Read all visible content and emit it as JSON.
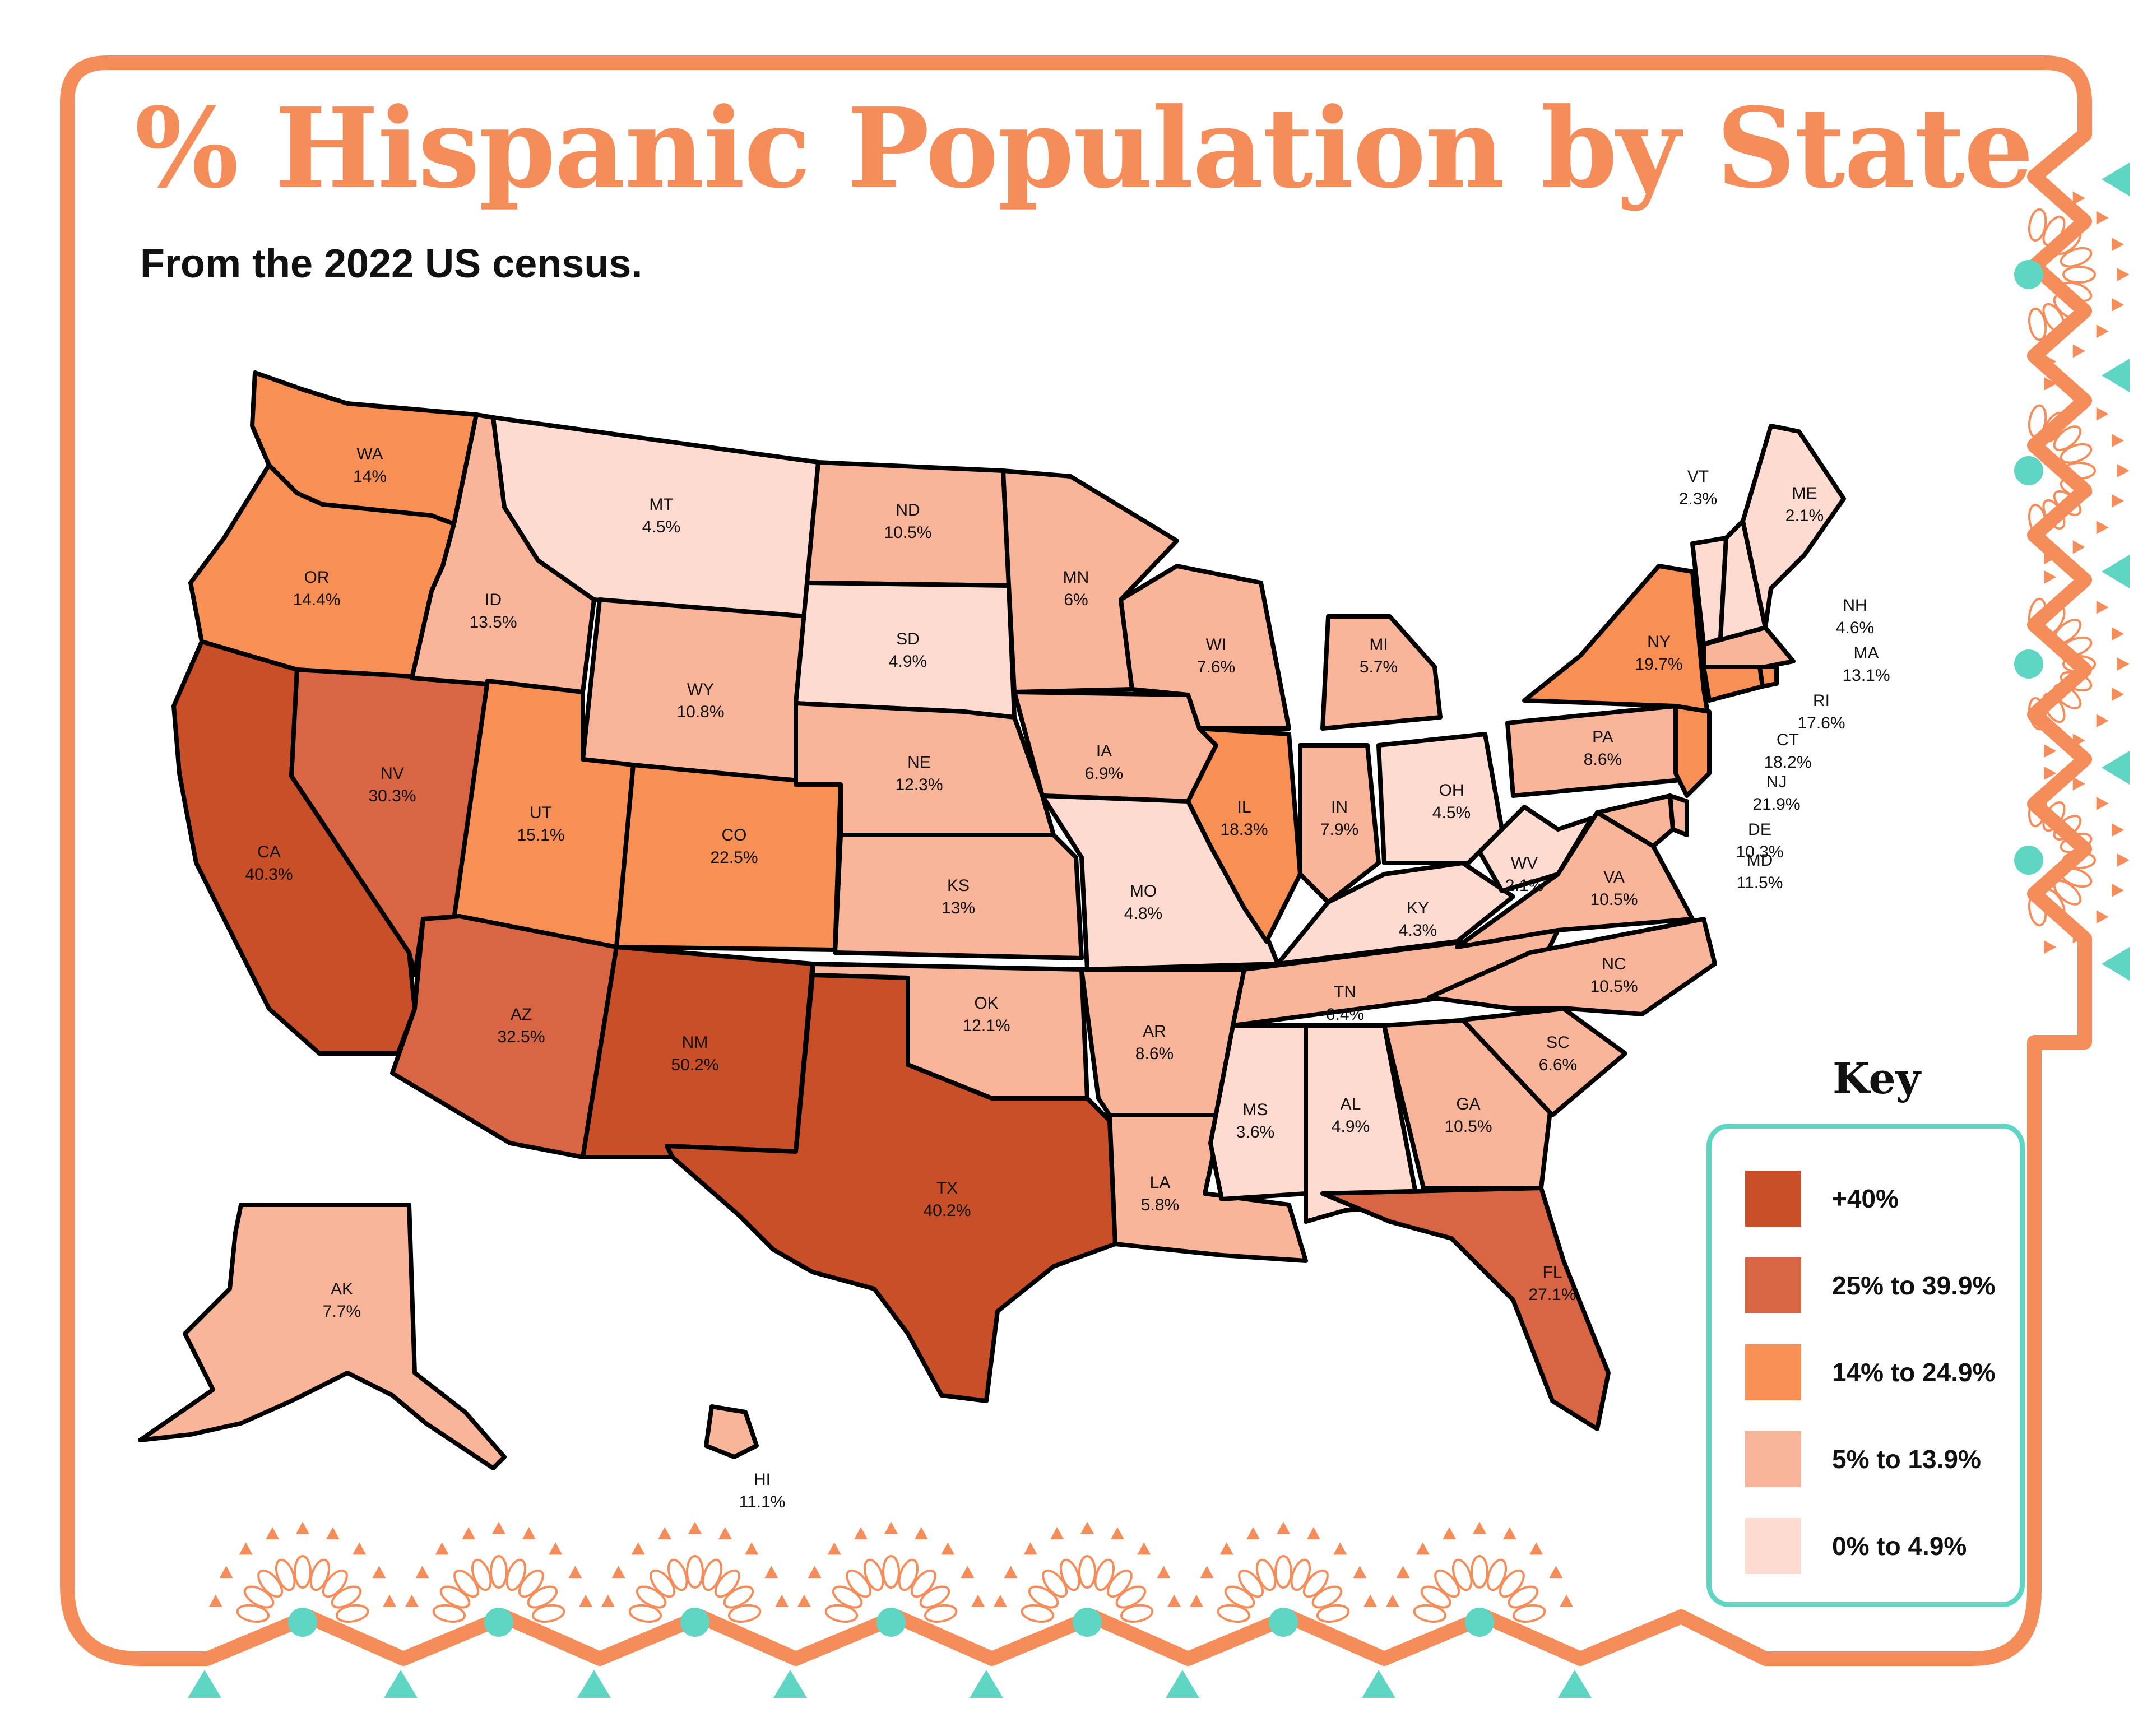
{
  "title": "% Hispanic Population by State",
  "subtitle": "From the 2022 US census.",
  "colors": {
    "frame": "#f58d5a",
    "accent_teal": "#5fd6c4",
    "cat_40_plus": "#c84f28",
    "cat_25_39": "#d86645",
    "cat_14_24": "#f89055",
    "cat_5_13": "#f9b59a",
    "cat_0_4": "#fddbd0"
  },
  "key": {
    "title": "Key",
    "items": [
      {
        "label": "+40%",
        "color": "#c84f28"
      },
      {
        "label": "25% to 39.9%",
        "color": "#d86645"
      },
      {
        "label": "14% to 24.9%",
        "color": "#f89055"
      },
      {
        "label": "5% to 13.9%",
        "color": "#f9b59a"
      },
      {
        "label": "0% to 4.9%",
        "color": "#fddbd0"
      }
    ]
  },
  "states": [
    {
      "abbr": "WA",
      "value": "14%",
      "category": "cat_14_24"
    },
    {
      "abbr": "OR",
      "value": "14.4%",
      "category": "cat_14_24"
    },
    {
      "abbr": "CA",
      "value": "40.3%",
      "category": "cat_40_plus"
    },
    {
      "abbr": "NV",
      "value": "30.3%",
      "category": "cat_25_39"
    },
    {
      "abbr": "ID",
      "value": "13.5%",
      "category": "cat_5_13"
    },
    {
      "abbr": "MT",
      "value": "4.5%",
      "category": "cat_0_4"
    },
    {
      "abbr": "WY",
      "value": "10.8%",
      "category": "cat_5_13"
    },
    {
      "abbr": "UT",
      "value": "15.1%",
      "category": "cat_14_24"
    },
    {
      "abbr": "AZ",
      "value": "32.5%",
      "category": "cat_25_39"
    },
    {
      "abbr": "CO",
      "value": "22.5%",
      "category": "cat_14_24"
    },
    {
      "abbr": "NM",
      "value": "50.2%",
      "category": "cat_40_plus"
    },
    {
      "abbr": "ND",
      "value": "10.5%",
      "category": "cat_5_13"
    },
    {
      "abbr": "SD",
      "value": "4.9%",
      "category": "cat_0_4"
    },
    {
      "abbr": "NE",
      "value": "12.3%",
      "category": "cat_5_13"
    },
    {
      "abbr": "KS",
      "value": "13%",
      "category": "cat_5_13"
    },
    {
      "abbr": "OK",
      "value": "12.1%",
      "category": "cat_5_13"
    },
    {
      "abbr": "TX",
      "value": "40.2%",
      "category": "cat_40_plus"
    },
    {
      "abbr": "MN",
      "value": "6%",
      "category": "cat_5_13"
    },
    {
      "abbr": "IA",
      "value": "6.9%",
      "category": "cat_5_13"
    },
    {
      "abbr": "MO",
      "value": "4.8%",
      "category": "cat_0_4"
    },
    {
      "abbr": "AR",
      "value": "8.6%",
      "category": "cat_5_13"
    },
    {
      "abbr": "LA",
      "value": "5.8%",
      "category": "cat_5_13"
    },
    {
      "abbr": "WI",
      "value": "7.6%",
      "category": "cat_5_13"
    },
    {
      "abbr": "IL",
      "value": "18.3%",
      "category": "cat_14_24"
    },
    {
      "abbr": "MI",
      "value": "5.7%",
      "category": "cat_5_13"
    },
    {
      "abbr": "IN",
      "value": "7.9%",
      "category": "cat_5_13"
    },
    {
      "abbr": "OH",
      "value": "4.5%",
      "category": "cat_0_4"
    },
    {
      "abbr": "KY",
      "value": "4.3%",
      "category": "cat_0_4"
    },
    {
      "abbr": "TN",
      "value": "6.4%",
      "category": "cat_5_13"
    },
    {
      "abbr": "MS",
      "value": "3.6%",
      "category": "cat_0_4"
    },
    {
      "abbr": "AL",
      "value": "4.9%",
      "category": "cat_0_4"
    },
    {
      "abbr": "GA",
      "value": "10.5%",
      "category": "cat_5_13"
    },
    {
      "abbr": "FL",
      "value": "27.1%",
      "category": "cat_25_39"
    },
    {
      "abbr": "SC",
      "value": "6.6%",
      "category": "cat_5_13"
    },
    {
      "abbr": "NC",
      "value": "10.5%",
      "category": "cat_5_13"
    },
    {
      "abbr": "VA",
      "value": "10.5%",
      "category": "cat_5_13"
    },
    {
      "abbr": "WV",
      "value": "2.1%",
      "category": "cat_0_4"
    },
    {
      "abbr": "PA",
      "value": "8.6%",
      "category": "cat_5_13"
    },
    {
      "abbr": "NY",
      "value": "19.7%",
      "category": "cat_14_24"
    },
    {
      "abbr": "VT",
      "value": "2.3%",
      "category": "cat_0_4"
    },
    {
      "abbr": "NH",
      "value": "4.6%",
      "category": "cat_0_4"
    },
    {
      "abbr": "ME",
      "value": "2.1%",
      "category": "cat_0_4"
    },
    {
      "abbr": "MA",
      "value": "13.1%",
      "category": "cat_5_13"
    },
    {
      "abbr": "RI",
      "value": "17.6%",
      "category": "cat_14_24"
    },
    {
      "abbr": "CT",
      "value": "18.2%",
      "category": "cat_14_24"
    },
    {
      "abbr": "NJ",
      "value": "21.9%",
      "category": "cat_14_24"
    },
    {
      "abbr": "DE",
      "value": "10.3%",
      "category": "cat_5_13"
    },
    {
      "abbr": "MD",
      "value": "11.5%",
      "category": "cat_5_13"
    },
    {
      "abbr": "AK",
      "value": "7.7%",
      "category": "cat_5_13"
    },
    {
      "abbr": "HI",
      "value": "11.1%",
      "category": "cat_5_13"
    }
  ]
}
